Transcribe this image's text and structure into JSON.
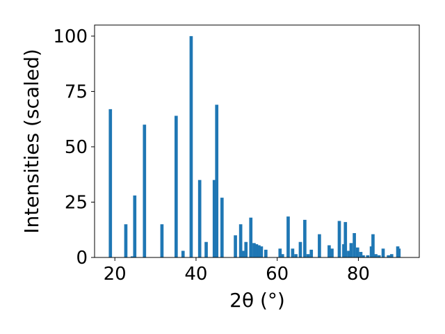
{
  "chart_data": {
    "type": "bar",
    "title": "",
    "xlabel": "2θ (°)",
    "ylabel": "Intensities (scaled)",
    "xlim": [
      15,
      95
    ],
    "ylim": [
      0,
      105
    ],
    "xticks": [
      20,
      40,
      60,
      80
    ],
    "yticks": [
      0,
      25,
      50,
      75,
      100
    ],
    "grid": false,
    "bar_color": "#1f77b4",
    "bar_width": 0.8,
    "x": [
      18.9,
      22.7,
      24.3,
      24.9,
      27.3,
      31.6,
      35.1,
      36.8,
      38.8,
      40.9,
      42.5,
      44.5,
      45.1,
      46.4,
      49.7,
      51.0,
      51.6,
      52.3,
      53.5,
      54.3,
      54.9,
      55.5,
      56.1,
      57.2,
      60.7,
      61.3,
      62.7,
      63.8,
      64.6,
      65.7,
      66.8,
      67.6,
      68.4,
      70.4,
      72.8,
      73.5,
      75.3,
      76.4,
      76.8,
      77.6,
      78.2,
      79.0,
      79.8,
      80.6,
      81.2,
      82.3,
      83.2,
      83.6,
      84.3,
      85.1,
      86.1,
      87.4,
      88.2,
      89.7,
      90.0
    ],
    "values": [
      67,
      15,
      0.5,
      28,
      60,
      15,
      64,
      3,
      100,
      35,
      7,
      35,
      69,
      27,
      10,
      15,
      3,
      7,
      18,
      6.5,
      6,
      5.5,
      5,
      3.5,
      4,
      1.5,
      18.5,
      4,
      1.5,
      7,
      17,
      1.5,
      3.5,
      10.5,
      5.5,
      4,
      16.5,
      6,
      16,
      3,
      6.5,
      11,
      4.5,
      2.5,
      1,
      1,
      5,
      10.5,
      1.5,
      1,
      4,
      1,
      1.5,
      5,
      4
    ]
  }
}
